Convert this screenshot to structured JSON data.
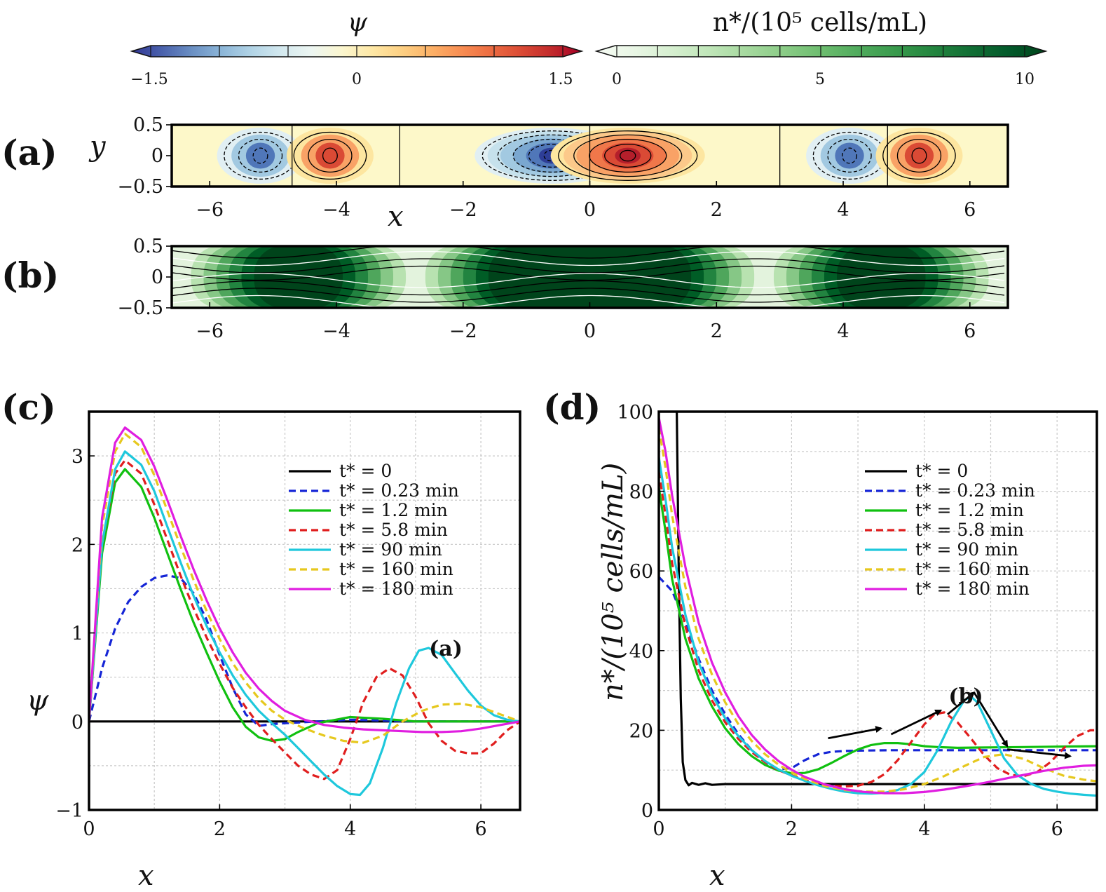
{
  "colorbars": {
    "psi": {
      "title": "ψ",
      "ticks": [
        "−1.5",
        "0",
        "1.5"
      ],
      "stops": [
        "#313695",
        "#4a61ac",
        "#6a8fc3",
        "#8cb6d8",
        "#b2d4e6",
        "#d4e9ef",
        "#edf6f2",
        "#fbf6cf",
        "#fee8a6",
        "#fdd083",
        "#fcb066",
        "#f88d52",
        "#ec6b41",
        "#da4a35",
        "#c22a2c",
        "#a50026"
      ]
    },
    "n": {
      "title": "n*/(10⁵ cells/mL)",
      "ticks": [
        "0",
        "5",
        "10"
      ],
      "stops": [
        "#f7fcf5",
        "#e9f6e5",
        "#d6efd0",
        "#c0e6b9",
        "#a6d99f",
        "#8bcc87",
        "#6dbd6f",
        "#50ab5d",
        "#389a4c",
        "#23853f",
        "#116e34",
        "#035a2b",
        "#00441b"
      ]
    }
  },
  "panel_a": {
    "label": "(a)",
    "ylabel": "y",
    "xlabel": "x",
    "xticks": [
      "−6",
      "−4",
      "−2",
      "0",
      "2",
      "4",
      "6"
    ],
    "yticks": [
      "0.5",
      "0",
      "−0.5"
    ],
    "cells": [
      {
        "center": -5.2,
        "amp": -0.45
      },
      {
        "center": -4.1,
        "amp": 0.55
      },
      {
        "center": -0.6,
        "amp": -1.5
      },
      {
        "center": 0.6,
        "amp": 1.5
      },
      {
        "center": 4.1,
        "amp": -0.45
      },
      {
        "center": 5.2,
        "amp": 0.55
      }
    ],
    "dividers_x": [
      -4.7,
      -3.0,
      0,
      3.0,
      4.7
    ]
  },
  "panel_b": {
    "label": "(b)",
    "xticks": [
      "−6",
      "−4",
      "−2",
      "0",
      "2",
      "4",
      "6"
    ],
    "yticks": [
      "0.5",
      "0",
      "−0.5"
    ],
    "dark_bands_x": [
      [
        -5.3,
        -3.9
      ],
      [
        -1.6,
        1.6
      ],
      [
        3.9,
        5.3
      ]
    ]
  },
  "panel_c": {
    "label": "(c)",
    "annotation": "(a)",
    "annotation_color": "#1ec8dc"
  },
  "panel_d": {
    "label": "(d)",
    "annotation": "(b)",
    "annotation_color": "#1ec8dc"
  },
  "chart_data": [
    {
      "type": "line",
      "panel": "c",
      "xlabel": "x",
      "ylabel": "ψ",
      "xlim": [
        0,
        6.6
      ],
      "ylim": [
        -1,
        3.5
      ],
      "xticks": [
        "0",
        "2",
        "4",
        "6"
      ],
      "yticks": [
        "−1",
        "0",
        "1",
        "2",
        "3"
      ],
      "series": [
        {
          "name": "t* = 0",
          "color": "#000000",
          "dash": false,
          "x": [
            0,
            6.6
          ],
          "y": [
            0,
            0
          ]
        },
        {
          "name": "t* = 0.23 min",
          "color": "#1525d6",
          "dash": true,
          "x": [
            0,
            0.2,
            0.4,
            0.6,
            0.8,
            1.0,
            1.2,
            1.4,
            1.6,
            1.8,
            2.0,
            2.2,
            2.4,
            2.6,
            2.8,
            3.0,
            3.5,
            4.0,
            4.5,
            5.0,
            5.5,
            6.0,
            6.6
          ],
          "y": [
            0,
            0.6,
            1.05,
            1.35,
            1.52,
            1.62,
            1.65,
            1.62,
            1.45,
            1.15,
            0.75,
            0.38,
            0.08,
            -0.05,
            -0.03,
            -0.02,
            0.0,
            0.02,
            0.01,
            0.0,
            0.0,
            0.0,
            0.0
          ]
        },
        {
          "name": "t* = 1.2 min",
          "color": "#10c010",
          "dash": false,
          "x": [
            0,
            0.2,
            0.4,
            0.55,
            0.8,
            1.0,
            1.2,
            1.4,
            1.6,
            1.8,
            2.0,
            2.2,
            2.4,
            2.6,
            2.8,
            3.0,
            3.2,
            3.5,
            4.0,
            4.5,
            5.0,
            5.5,
            6.0,
            6.6
          ],
          "y": [
            0,
            1.9,
            2.7,
            2.85,
            2.65,
            2.3,
            1.9,
            1.5,
            1.12,
            0.78,
            0.45,
            0.16,
            -0.06,
            -0.18,
            -0.22,
            -0.2,
            -0.12,
            -0.02,
            0.05,
            0.03,
            0.0,
            0.0,
            0.0,
            0.0
          ]
        },
        {
          "name": "t* = 5.8 min",
          "color": "#e01e1e",
          "dash": true,
          "x": [
            0,
            0.2,
            0.4,
            0.55,
            0.8,
            1.0,
            1.2,
            1.4,
            1.6,
            1.8,
            2.0,
            2.2,
            2.4,
            2.6,
            2.8,
            3.0,
            3.2,
            3.4,
            3.6,
            3.8,
            4.0,
            4.2,
            4.4,
            4.6,
            4.8,
            5.0,
            5.2,
            5.4,
            5.6,
            5.8,
            6.0,
            6.2,
            6.4,
            6.6
          ],
          "y": [
            0,
            2.0,
            2.8,
            2.95,
            2.8,
            2.45,
            2.05,
            1.65,
            1.28,
            0.95,
            0.65,
            0.38,
            0.16,
            -0.04,
            -0.2,
            -0.35,
            -0.5,
            -0.6,
            -0.65,
            -0.55,
            -0.2,
            0.22,
            0.5,
            0.6,
            0.52,
            0.28,
            -0.02,
            -0.22,
            -0.33,
            -0.36,
            -0.36,
            -0.25,
            -0.1,
            0.0
          ]
        },
        {
          "name": "t* = 90 min",
          "color": "#1ec8dc",
          "dash": false,
          "x": [
            0,
            0.2,
            0.4,
            0.55,
            0.8,
            1.0,
            1.2,
            1.4,
            1.6,
            1.8,
            2.0,
            2.2,
            2.4,
            2.6,
            2.8,
            3.0,
            3.2,
            3.4,
            3.6,
            3.8,
            4.0,
            4.15,
            4.3,
            4.5,
            4.7,
            4.9,
            5.05,
            5.2,
            5.4,
            5.6,
            5.8,
            6.0,
            6.2,
            6.4,
            6.6
          ],
          "y": [
            0,
            2.0,
            2.85,
            3.05,
            2.9,
            2.6,
            2.2,
            1.8,
            1.42,
            1.08,
            0.78,
            0.52,
            0.3,
            0.12,
            -0.02,
            -0.15,
            -0.3,
            -0.45,
            -0.6,
            -0.73,
            -0.82,
            -0.83,
            -0.7,
            -0.3,
            0.2,
            0.6,
            0.8,
            0.83,
            0.75,
            0.55,
            0.35,
            0.18,
            0.07,
            0.02,
            0.0
          ]
        },
        {
          "name": "t* = 160 min",
          "color": "#e6c81e",
          "dash": true,
          "x": [
            0,
            0.2,
            0.4,
            0.55,
            0.8,
            1.0,
            1.2,
            1.4,
            1.6,
            1.8,
            2.0,
            2.2,
            2.4,
            2.6,
            2.8,
            3.0,
            3.3,
            3.6,
            3.9,
            4.2,
            4.5,
            4.8,
            5.1,
            5.4,
            5.7,
            6.0,
            6.3,
            6.6
          ],
          "y": [
            0,
            2.2,
            3.05,
            3.25,
            3.1,
            2.78,
            2.38,
            1.98,
            1.6,
            1.25,
            0.93,
            0.66,
            0.44,
            0.26,
            0.12,
            0.02,
            -0.08,
            -0.16,
            -0.22,
            -0.24,
            -0.16,
            0.0,
            0.12,
            0.19,
            0.2,
            0.16,
            0.08,
            0.0
          ]
        },
        {
          "name": "t* = 180 min",
          "color": "#e01ee0",
          "dash": false,
          "x": [
            0,
            0.2,
            0.4,
            0.55,
            0.8,
            1.0,
            1.2,
            1.4,
            1.6,
            1.8,
            2.0,
            2.2,
            2.4,
            2.6,
            2.8,
            3.0,
            3.3,
            3.6,
            3.9,
            4.2,
            4.5,
            4.8,
            5.1,
            5.4,
            5.7,
            6.0,
            6.3,
            6.6
          ],
          "y": [
            0,
            2.3,
            3.15,
            3.32,
            3.18,
            2.88,
            2.5,
            2.1,
            1.72,
            1.37,
            1.05,
            0.78,
            0.55,
            0.37,
            0.23,
            0.12,
            0.02,
            -0.04,
            -0.07,
            -0.09,
            -0.1,
            -0.11,
            -0.12,
            -0.12,
            -0.11,
            -0.08,
            -0.04,
            0.0
          ]
        }
      ]
    },
    {
      "type": "line",
      "panel": "d",
      "xlabel": "x",
      "ylabel": "n*/(10⁵ cells/mL)",
      "xlim": [
        0,
        6.6
      ],
      "ylim": [
        0,
        100
      ],
      "xticks": [
        "0",
        "2",
        "4",
        "6"
      ],
      "yticks": [
        "0",
        "20",
        "40",
        "60",
        "80",
        "100"
      ],
      "series": [
        {
          "name": "t* = 0",
          "color": "#000000",
          "dash": false,
          "x": [
            0.27,
            0.3,
            0.33,
            0.36,
            0.4,
            0.45,
            0.5,
            0.6,
            0.7,
            0.8,
            1.0,
            1.5,
            2.0,
            3.0,
            4.0,
            5.0,
            6.0,
            6.6
          ],
          "y": [
            100,
            60,
            28,
            12,
            7.5,
            6.2,
            6.8,
            6.3,
            6.7,
            6.3,
            6.5,
            6.5,
            6.5,
            6.5,
            6.5,
            6.5,
            6.5,
            6.5
          ]
        },
        {
          "name": "t* = 0.23 min",
          "color": "#1525d6",
          "dash": true,
          "x": [
            0,
            0.2,
            0.4,
            0.6,
            0.8,
            1.0,
            1.2,
            1.4,
            1.6,
            1.8,
            2.0,
            2.2,
            2.4,
            2.6,
            2.8,
            3.0,
            3.5,
            4.0,
            4.5,
            5.0,
            5.5,
            6.0,
            6.6
          ],
          "y": [
            58.5,
            55,
            47,
            38,
            30,
            24,
            19,
            15,
            12,
            10.2,
            10.5,
            12.5,
            14,
            14.6,
            14.8,
            14.9,
            15,
            15,
            15,
            15,
            15,
            15,
            15
          ]
        },
        {
          "name": "t* = 1.2 min",
          "color": "#10c010",
          "dash": false,
          "x": [
            0,
            0.1,
            0.2,
            0.4,
            0.6,
            0.8,
            1.0,
            1.2,
            1.4,
            1.6,
            1.8,
            2.0,
            2.2,
            2.4,
            2.6,
            2.8,
            3.0,
            3.2,
            3.4,
            3.6,
            3.8,
            4.0,
            4.2,
            4.5,
            5.0,
            5.5,
            6.0,
            6.6
          ],
          "y": [
            81,
            70,
            58,
            43,
            33,
            26,
            20.5,
            16.5,
            13.5,
            11.3,
            9.9,
            9.2,
            9.3,
            10.2,
            11.8,
            13.6,
            15.2,
            16.3,
            16.8,
            16.8,
            16.5,
            16.0,
            15.8,
            15.6,
            15.7,
            15.8,
            15.9,
            16.0
          ]
        },
        {
          "name": "t* = 5.8 min",
          "color": "#e01e1e",
          "dash": true,
          "x": [
            0,
            0.1,
            0.2,
            0.4,
            0.6,
            0.8,
            1.0,
            1.2,
            1.4,
            1.6,
            1.8,
            2.0,
            2.2,
            2.4,
            2.6,
            2.8,
            3.0,
            3.2,
            3.4,
            3.6,
            3.8,
            4.0,
            4.15,
            4.3,
            4.5,
            4.7,
            4.9,
            5.1,
            5.3,
            5.5,
            5.7,
            5.9,
            6.1,
            6.3,
            6.5,
            6.6
          ],
          "y": [
            85,
            74,
            62,
            46,
            35,
            27.5,
            22,
            17.8,
            14.5,
            12,
            10,
            8.7,
            7.5,
            6.6,
            6.1,
            5.9,
            6.1,
            7,
            9,
            12.5,
            17,
            21.5,
            24,
            24.5,
            22,
            18,
            13.8,
            10.5,
            8.8,
            8.5,
            9.5,
            12,
            15.5,
            18.5,
            20,
            20
          ]
        },
        {
          "name": "t* = 90 min",
          "color": "#1ec8dc",
          "dash": false,
          "x": [
            0,
            0.1,
            0.2,
            0.4,
            0.6,
            0.8,
            1.0,
            1.2,
            1.4,
            1.6,
            1.8,
            2.0,
            2.2,
            2.4,
            2.6,
            2.8,
            3.0,
            3.2,
            3.4,
            3.6,
            3.8,
            4.0,
            4.2,
            4.4,
            4.6,
            4.7,
            4.8,
            5.0,
            5.2,
            5.4,
            5.6,
            5.8,
            6.0,
            6.2,
            6.4,
            6.6
          ],
          "y": [
            88.5,
            78,
            66,
            49,
            37,
            29,
            23,
            18.5,
            15,
            12.3,
            10.2,
            8.6,
            7.3,
            6.2,
            5.3,
            4.6,
            4.2,
            4.1,
            4.3,
            5,
            6.5,
            9.5,
            15,
            22,
            27.5,
            28.5,
            27,
            20,
            13,
            8.8,
            6.6,
            5.3,
            4.6,
            4.1,
            3.8,
            3.6
          ]
        },
        {
          "name": "t* = 160 min",
          "color": "#e6c81e",
          "dash": true,
          "x": [
            0,
            0.1,
            0.2,
            0.4,
            0.6,
            0.8,
            1.0,
            1.2,
            1.4,
            1.6,
            1.8,
            2.0,
            2.2,
            2.5,
            2.8,
            3.1,
            3.4,
            3.7,
            4.0,
            4.3,
            4.6,
            4.9,
            5.2,
            5.5,
            5.8,
            6.1,
            6.4,
            6.6
          ],
          "y": [
            96,
            86,
            74,
            56,
            43,
            34,
            27,
            21.5,
            17.3,
            14,
            11.4,
            9.4,
            7.8,
            6,
            5,
            4.6,
            4.6,
            5.2,
            6.5,
            8.5,
            11,
            13.3,
            14,
            12.8,
            10.5,
            8.6,
            7.6,
            7.2
          ]
        },
        {
          "name": "t* = 180 min",
          "color": "#e01ee0",
          "dash": false,
          "x": [
            0,
            0.1,
            0.2,
            0.4,
            0.6,
            0.8,
            1.0,
            1.2,
            1.4,
            1.6,
            1.8,
            2.0,
            2.2,
            2.5,
            2.8,
            3.1,
            3.4,
            3.7,
            4.0,
            4.3,
            4.6,
            4.9,
            5.2,
            5.5,
            5.8,
            6.1,
            6.4,
            6.6
          ],
          "y": [
            98.5,
            90,
            79,
            61,
            47,
            37,
            29.5,
            23.5,
            18.8,
            15.2,
            12.3,
            10.1,
            8.3,
            6.4,
            5.2,
            4.5,
            4.2,
            4.2,
            4.5,
            5.1,
            5.9,
            6.8,
            7.8,
            8.8,
            9.8,
            10.6,
            11.1,
            11.2
          ]
        }
      ],
      "arrows": [
        [
          [
            2.55,
            18
          ],
          [
            3.35,
            20.5
          ]
        ],
        [
          [
            3.5,
            19
          ],
          [
            4.25,
            25
          ]
        ],
        [
          [
            4.35,
            24
          ],
          [
            4.75,
            29.5
          ]
        ],
        [
          [
            4.75,
            29.5
          ],
          [
            5.25,
            16
          ]
        ],
        [
          [
            5.25,
            15.2
          ],
          [
            6.2,
            13.5
          ]
        ]
      ]
    }
  ]
}
